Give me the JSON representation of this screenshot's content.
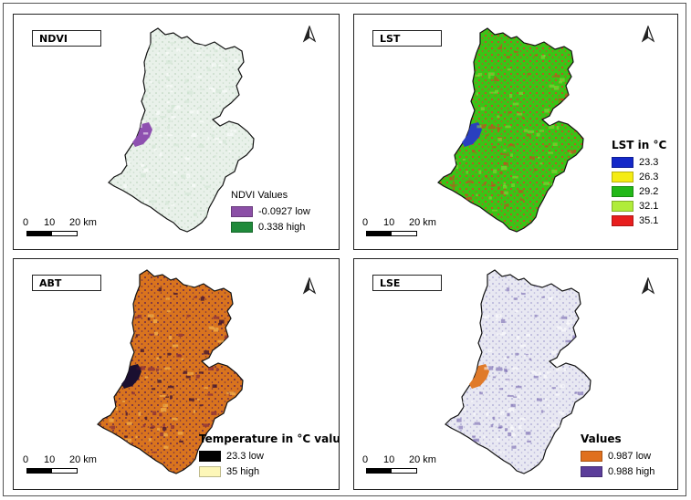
{
  "panels": {
    "ndvi": {
      "title": "NDVI",
      "legend_title": "NDVI Values",
      "legend": [
        {
          "label": "-0.0927 low",
          "color": "#8b4fa6"
        },
        {
          "label": "0.338 high",
          "color": "#1f8a3a"
        }
      ],
      "fill": "#e9f1ea",
      "patch": "#8e50b0"
    },
    "lst": {
      "title": "LST",
      "legend_title": "LST in °C",
      "legend": [
        {
          "label": "23.3",
          "color": "#1428c8"
        },
        {
          "label": "26.3",
          "color": "#f5ec14"
        },
        {
          "label": "29.2",
          "color": "#22b818"
        },
        {
          "label": "32.1",
          "color": "#b0ec3a"
        },
        {
          "label": "35.1",
          "color": "#e81e1e"
        }
      ],
      "fill": "#3ac416",
      "patch": "#2a3fc0"
    },
    "abt": {
      "title": "ABT",
      "legend_title": "Temperature in °C value",
      "legend": [
        {
          "label": "23.3 low",
          "color": "#000000"
        },
        {
          "label": "35 high",
          "color": "#fdf7b8"
        }
      ],
      "fill": "#d9741e",
      "patch": "#1a0f30"
    },
    "lse": {
      "title": "LSE",
      "legend_title": "Values",
      "legend": [
        {
          "label": "0.987 low",
          "color": "#e0701e"
        },
        {
          "label": "0.988 high",
          "color": "#5b3d9a"
        }
      ],
      "fill": "#e8e8f2",
      "patch": "#e07a2a"
    }
  },
  "scale_bar": {
    "labels": [
      "0",
      "10",
      "20 km"
    ]
  }
}
